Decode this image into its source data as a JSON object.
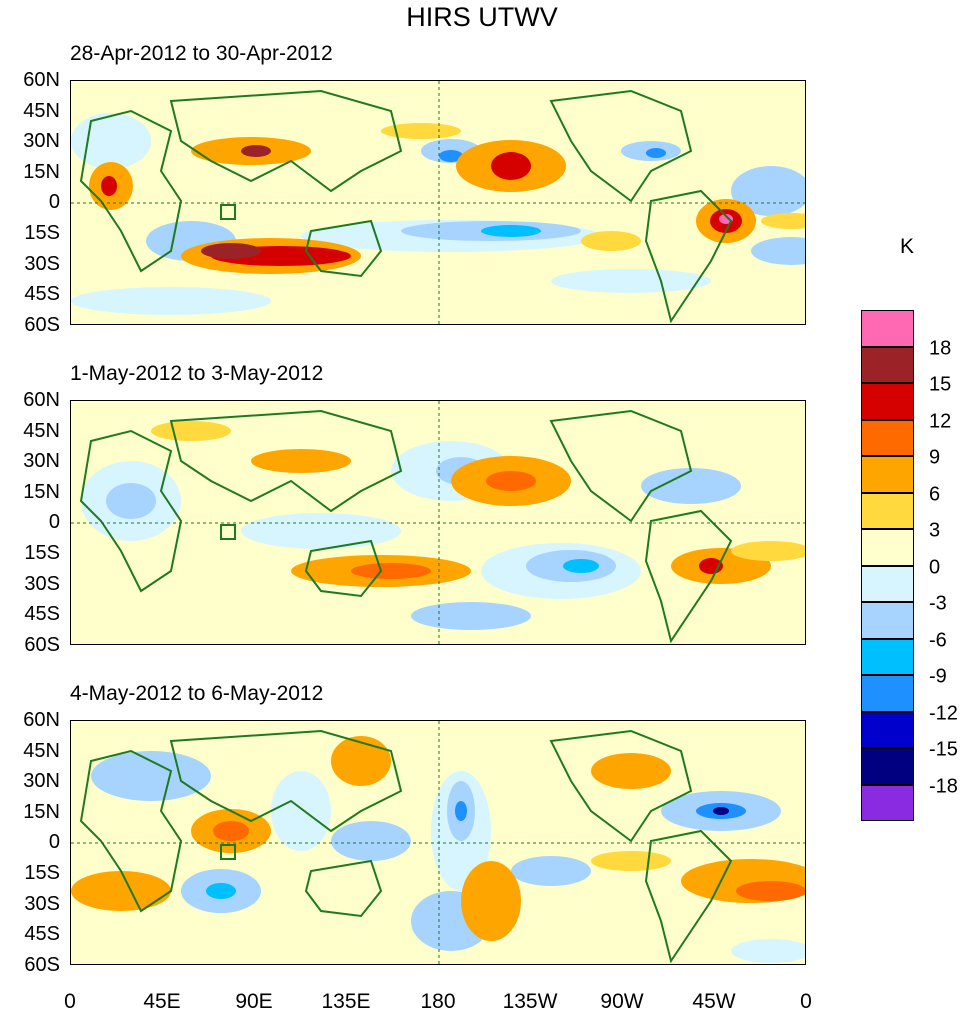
{
  "title": "HIRS UTWV",
  "panels": [
    {
      "period": "28-Apr-2012 to 30-Apr-2012"
    },
    {
      "period": "1-May-2012 to 3-May-2012"
    },
    {
      "period": "4-May-2012 to 6-May-2012"
    }
  ],
  "y_axis_labels": [
    "60N",
    "45N",
    "30N",
    "15N",
    "0",
    "15S",
    "30S",
    "45S",
    "60S"
  ],
  "x_axis_labels": [
    "0",
    "45E",
    "90E",
    "135E",
    "180",
    "135W",
    "90W",
    "45W",
    "0"
  ],
  "legend": {
    "unit": "K",
    "labels": [
      "18",
      "15",
      "12",
      "9",
      "6",
      "3",
      "0",
      "-3",
      "-6",
      "-9",
      "-12",
      "-15",
      "-18"
    ],
    "colors": [
      "#ff69b4",
      "#9b2226",
      "#d50000",
      "#ff6a00",
      "#ffa500",
      "#ffd93d",
      "#ffffcc",
      "#d6f5ff",
      "#a7d3ff",
      "#00bfff",
      "#1e90ff",
      "#0000cd",
      "#000080",
      "#8a2be2"
    ]
  },
  "map_colors": {
    "coast": "#1e7a1e",
    "neutral_pos": "#ffffcc",
    "neutral_neg": "#d6f5ff"
  }
}
